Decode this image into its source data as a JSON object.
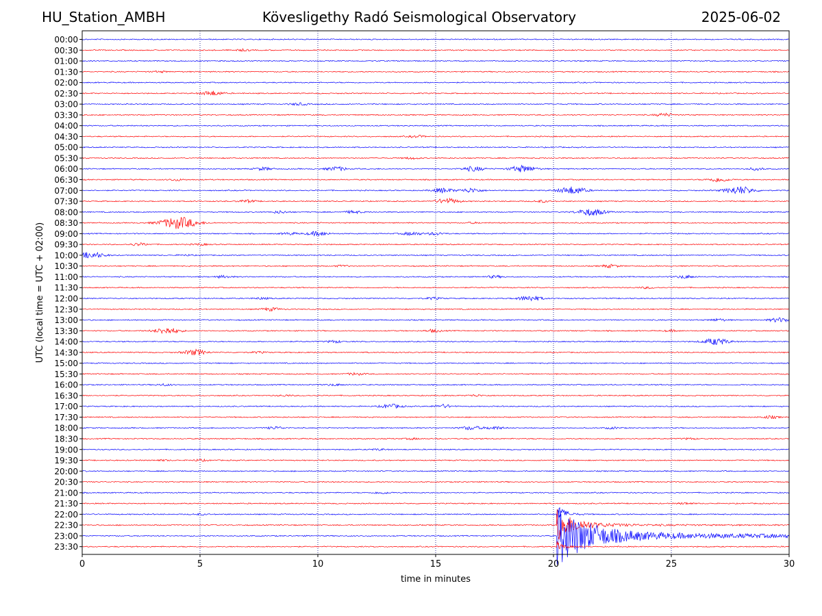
{
  "header": {
    "station": "HU_Station_AMBH",
    "observatory": "Kövesligethy Radó Seismological Observatory",
    "date": "2025-06-02"
  },
  "chart_data": {
    "type": "line",
    "xlabel": "time in minutes",
    "ylabel": "UTC (local time = UTC + 02:00)",
    "xlim": [
      0,
      30
    ],
    "xticks": [
      "0",
      "5",
      "10",
      "15",
      "20",
      "25",
      "30"
    ],
    "grid": "vertical dotted at x ticks",
    "colors": {
      "even_rows": "#0000ff",
      "odd_rows": "#ff0000",
      "grid": "#000080"
    },
    "rows": [
      {
        "label": "00:00",
        "events": []
      },
      {
        "label": "00:30",
        "events": [
          [
            6.8,
            0.6
          ]
        ]
      },
      {
        "label": "01:00",
        "events": []
      },
      {
        "label": "01:30",
        "events": [
          [
            3.3,
            0.5
          ]
        ]
      },
      {
        "label": "02:00",
        "events": []
      },
      {
        "label": "02:30",
        "events": [
          [
            5.5,
            1.6
          ]
        ]
      },
      {
        "label": "03:00",
        "events": [
          [
            9.2,
            0.8
          ]
        ]
      },
      {
        "label": "03:30",
        "events": [
          [
            24.7,
            1.1
          ]
        ]
      },
      {
        "label": "04:00",
        "events": []
      },
      {
        "label": "04:30",
        "events": [
          [
            14.2,
            0.7
          ]
        ]
      },
      {
        "label": "05:00",
        "events": []
      },
      {
        "label": "05:30",
        "events": [
          [
            14.0,
            0.6
          ]
        ]
      },
      {
        "label": "06:00",
        "events": [
          [
            7.7,
            1.0
          ],
          [
            10.8,
            1.4
          ],
          [
            16.6,
            1.6
          ],
          [
            18.7,
            2.3
          ],
          [
            28.6,
            0.8
          ]
        ]
      },
      {
        "label": "06:30",
        "events": [
          [
            4.0,
            0.6
          ],
          [
            27.0,
            1.5
          ]
        ]
      },
      {
        "label": "07:00",
        "events": [
          [
            15.3,
            1.6
          ],
          [
            16.5,
            1.5
          ],
          [
            20.8,
            2.6
          ],
          [
            27.9,
            2.8
          ]
        ]
      },
      {
        "label": "07:30",
        "events": [
          [
            7.0,
            0.9
          ],
          [
            15.5,
            1.9
          ],
          [
            19.5,
            0.7
          ]
        ]
      },
      {
        "label": "08:00",
        "events": [
          [
            8.4,
            0.8
          ],
          [
            11.5,
            0.9
          ],
          [
            21.6,
            2.5
          ]
        ]
      },
      {
        "label": "08:30",
        "events": [
          [
            4.1,
            4.2
          ],
          [
            16.6,
            0.4
          ]
        ]
      },
      {
        "label": "09:00",
        "events": [
          [
            8.8,
            0.8
          ],
          [
            10.0,
            1.5
          ],
          [
            14.0,
            1.2
          ],
          [
            15.0,
            0.9
          ]
        ]
      },
      {
        "label": "09:30",
        "events": [
          [
            2.4,
            0.9
          ],
          [
            5.0,
            0.6
          ]
        ]
      },
      {
        "label": "10:00",
        "events": [
          [
            0.4,
            2.2
          ],
          [
            4.4,
            0.4
          ]
        ]
      },
      {
        "label": "10:30",
        "events": [
          [
            11.0,
            0.5
          ],
          [
            22.4,
            1.0
          ]
        ]
      },
      {
        "label": "11:00",
        "events": [
          [
            6.0,
            0.8
          ],
          [
            17.5,
            0.8
          ],
          [
            25.6,
            1.0
          ]
        ]
      },
      {
        "label": "11:30",
        "events": [
          [
            24.0,
            0.6
          ]
        ]
      },
      {
        "label": "12:00",
        "events": [
          [
            7.6,
            0.6
          ],
          [
            14.9,
            0.7
          ],
          [
            19.0,
            1.9
          ]
        ]
      },
      {
        "label": "12:30",
        "events": [
          [
            8.0,
            1.1
          ]
        ]
      },
      {
        "label": "13:00",
        "events": [
          [
            27.0,
            0.8
          ],
          [
            29.6,
            1.5
          ]
        ]
      },
      {
        "label": "13:30",
        "events": [
          [
            3.6,
            2.2
          ],
          [
            14.9,
            0.9
          ],
          [
            25.0,
            0.5
          ]
        ]
      },
      {
        "label": "14:00",
        "events": [
          [
            10.7,
            0.8
          ],
          [
            26.9,
            2.3
          ]
        ]
      },
      {
        "label": "14:30",
        "events": [
          [
            4.8,
            1.9
          ],
          [
            7.5,
            0.5
          ]
        ]
      },
      {
        "label": "15:00",
        "events": []
      },
      {
        "label": "15:30",
        "events": [
          [
            11.6,
            0.8
          ]
        ]
      },
      {
        "label": "16:00",
        "events": [
          [
            3.5,
            0.6
          ],
          [
            10.7,
            0.6
          ]
        ]
      },
      {
        "label": "16:30",
        "events": [
          [
            8.6,
            0.5
          ],
          [
            16.7,
            0.6
          ]
        ]
      },
      {
        "label": "17:00",
        "events": [
          [
            13.1,
            1.5
          ],
          [
            15.3,
            1.2
          ]
        ]
      },
      {
        "label": "17:30",
        "events": [
          [
            29.2,
            0.9
          ]
        ]
      },
      {
        "label": "18:00",
        "events": [
          [
            8.2,
            0.9
          ],
          [
            16.5,
            1.3
          ],
          [
            17.5,
            1.0
          ],
          [
            22.5,
            0.6
          ]
        ]
      },
      {
        "label": "18:30",
        "events": [
          [
            14.0,
            0.5
          ],
          [
            25.8,
            0.5
          ]
        ]
      },
      {
        "label": "19:00",
        "events": [
          [
            12.6,
            0.5
          ]
        ]
      },
      {
        "label": "19:30",
        "events": [
          [
            3.4,
            0.4
          ],
          [
            5.0,
            0.6
          ]
        ]
      },
      {
        "label": "20:00",
        "events": []
      },
      {
        "label": "20:30",
        "events": []
      },
      {
        "label": "21:00",
        "events": [
          [
            12.7,
            0.7
          ]
        ]
      },
      {
        "label": "21:30",
        "events": [
          [
            25.6,
            0.6
          ]
        ]
      },
      {
        "label": "22:00",
        "events": [
          [
            5.0,
            0.5
          ]
        ]
      },
      {
        "label": "22:30",
        "events": []
      },
      {
        "label": "23:00",
        "events": []
      },
      {
        "label": "23:30",
        "events": []
      }
    ],
    "earthquake": {
      "start_minute": 20.15,
      "peak_amplitude": 6.0,
      "coda_to_minute": 30
    }
  }
}
